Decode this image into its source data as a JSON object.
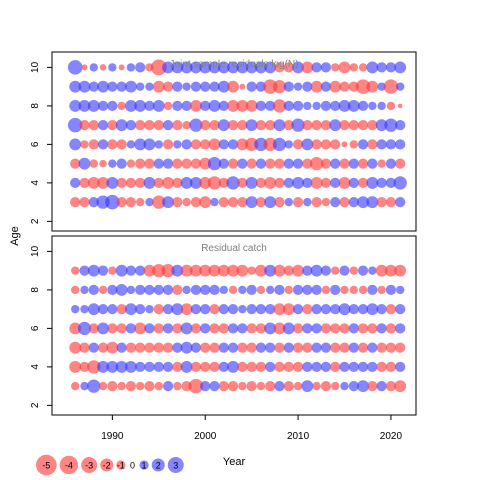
{
  "chart_data": {
    "type": "scatter",
    "y_axis_title": "Age",
    "x_axis_title": "Year",
    "x_ticks": [
      1990,
      2000,
      2010,
      2020
    ],
    "xlim": [
      1983.5,
      2022.7
    ],
    "colors": {
      "negative": "#ff3333",
      "positive": "#3333ff",
      "bubble_opacity": 0.6
    },
    "panels": [
      {
        "title": "Joint sample residuals log(N)",
        "ylim": [
          1.5,
          10.8
        ],
        "y_ticks": [
          2,
          4,
          6,
          8,
          10
        ],
        "years": [
          1986,
          1987,
          1988,
          1989,
          1990,
          1991,
          1992,
          1993,
          1994,
          1995,
          1996,
          1997,
          1998,
          1999,
          2000,
          2001,
          2002,
          2003,
          2004,
          2005,
          2006,
          2007,
          2008,
          2009,
          2010,
          2011,
          2012,
          2013,
          2014,
          2015,
          2016,
          2017,
          2018,
          2019,
          2020,
          2021
        ],
        "ages": [
          10,
          9,
          8,
          7,
          6,
          5,
          4,
          3
        ],
        "residuals": [
          [
            3,
            -0.5,
            1,
            -0.6,
            1,
            -0.5,
            1,
            1.5,
            -1,
            -3.5,
            2,
            2,
            2,
            2,
            2,
            2,
            2,
            2,
            2,
            2,
            2,
            2,
            -1.5,
            -1.5,
            2,
            -2,
            1.5,
            1.5,
            -1,
            -2,
            -1,
            -1,
            2,
            1.5,
            1.5,
            2
          ],
          [
            2,
            2,
            1.5,
            2,
            1.5,
            1.5,
            2,
            1,
            1,
            -2,
            -1.5,
            1.5,
            1,
            1.5,
            1.5,
            1.5,
            2,
            -2,
            -0.5,
            1.5,
            1.5,
            -3,
            -2.5,
            1.5,
            1,
            1.5,
            -2,
            1.5,
            -2,
            -1.5,
            -1.5,
            -3,
            -2,
            1,
            -3,
            1
          ],
          [
            2,
            2,
            2,
            1.5,
            1.5,
            -1,
            2,
            2,
            1.5,
            2,
            -1,
            1.5,
            1.5,
            -2,
            1.5,
            2,
            1.5,
            -2,
            -2,
            -2,
            1.5,
            1.5,
            -2.5,
            1.5,
            1.5,
            1,
            1,
            1.5,
            1.5,
            2,
            2,
            1.5,
            1,
            1,
            -1,
            -0.3
          ],
          [
            3,
            -1.5,
            -1.5,
            1.5,
            -1.5,
            2,
            1.5,
            -1.5,
            -1.5,
            -1.5,
            1.5,
            -1.5,
            -1,
            2.5,
            -1.5,
            -1.5,
            2,
            -1.5,
            -1.5,
            2,
            -1.5,
            -1.5,
            2,
            -1.5,
            2.5,
            -1.5,
            -1.5,
            -1.5,
            2,
            -1.5,
            -1.5,
            -1.5,
            -1.5,
            2,
            2.5,
            1.5
          ],
          [
            2,
            -1,
            -1.5,
            1.5,
            -1.5,
            -1.5,
            1,
            2,
            2,
            1,
            -1.5,
            1,
            1.5,
            -1.5,
            -1.5,
            -2,
            1.5,
            1.5,
            -2,
            -2.5,
            2.5,
            -2.5,
            2.5,
            1,
            -1.5,
            2,
            -1.5,
            -1.5,
            -1.5,
            -0.5,
            -1,
            1.5,
            -1.5,
            1.5,
            1.5,
            1.5
          ],
          [
            -1.5,
            2,
            -1,
            -0.8,
            1,
            1.5,
            -1,
            -1.5,
            -1.5,
            1.5,
            1.5,
            -1.5,
            -1.5,
            -1.5,
            -2,
            2.5,
            1.5,
            -1.5,
            1.5,
            -1.5,
            1.5,
            -1.5,
            -1.5,
            1.5,
            1.5,
            -1.5,
            -2.5,
            -1.5,
            1.5,
            -1.5,
            1.5,
            -1.5,
            1.5,
            -1,
            1.5,
            -1.5
          ],
          [
            1.5,
            -1.5,
            -2,
            -2,
            2,
            -1.5,
            -1.5,
            -1.5,
            2,
            -1.5,
            -2,
            -1.5,
            2,
            2,
            -2,
            -2.5,
            -1.5,
            2.5,
            -1.5,
            2,
            -1.5,
            -2,
            -1.5,
            1.5,
            2,
            1.5,
            -2,
            -1.5,
            1.5,
            -2,
            1.5,
            -1.5,
            2,
            1.5,
            1.5,
            2.5
          ],
          [
            -1.5,
            -1.5,
            1.5,
            2.5,
            3,
            -1.5,
            -1.5,
            -1,
            1,
            -2.5,
            2,
            -1.5,
            -1,
            -1.5,
            -2,
            1,
            -1.5,
            -1.5,
            -1.5,
            2,
            -1.5,
            2,
            -1.5,
            1,
            -1.5,
            1,
            -1.5,
            -1,
            1.5,
            -1.5,
            1.5,
            2,
            2,
            -1.5,
            -1.5,
            1.5
          ]
        ]
      },
      {
        "title": "Residual catch",
        "ylim": [
          1.5,
          10.8
        ],
        "y_ticks": [
          2,
          4,
          6,
          8,
          10
        ],
        "years": [
          1986,
          1987,
          1988,
          1989,
          1990,
          1991,
          1992,
          1993,
          1994,
          1995,
          1996,
          1997,
          1998,
          1999,
          2000,
          2001,
          2002,
          2003,
          2004,
          2005,
          2006,
          2007,
          2008,
          2009,
          2010,
          2011,
          2012,
          2013,
          2014,
          2015,
          2016,
          2017,
          2018,
          2019,
          2020,
          2021
        ],
        "ages": [
          9,
          8,
          7,
          6,
          5,
          4,
          3
        ],
        "residuals": [
          [
            -1,
            1.5,
            2,
            1.5,
            -1,
            2,
            1.5,
            1.5,
            -2,
            -2.5,
            -2.5,
            2,
            -2,
            -2,
            -2,
            -2,
            -2,
            -2,
            -2,
            -1,
            -2,
            2,
            -2,
            -1.5,
            -2,
            1.5,
            2,
            1.5,
            -1,
            1.5,
            -1,
            1.5,
            1,
            -2,
            -2,
            -2
          ],
          [
            -1,
            1,
            1.5,
            -1,
            1.5,
            2,
            1,
            1.5,
            1.5,
            1.5,
            1.5,
            -1.5,
            1,
            1.5,
            1.5,
            1.5,
            1,
            -1,
            1,
            1.5,
            -1,
            1,
            1.5,
            -1,
            1.5,
            1.5,
            1.5,
            -1,
            1.5,
            -1,
            -1,
            -1,
            1.5,
            -1,
            1.5,
            1
          ],
          [
            1,
            1,
            2,
            1.5,
            1.5,
            -1.5,
            2,
            1.5,
            1,
            -1.5,
            1.5,
            2,
            -2,
            1.5,
            1.5,
            -1.5,
            1.5,
            1.5,
            1,
            1.5,
            1.5,
            1.5,
            -2,
            -2,
            1.5,
            -1.5,
            1.5,
            1.5,
            1.5,
            2,
            1.5,
            1.5,
            2,
            1.5,
            -1.5,
            1.5
          ],
          [
            -2,
            2.5,
            -1.5,
            2,
            -1.5,
            -1.5,
            1.5,
            -2,
            1.5,
            -1.5,
            1.5,
            -1.5,
            2,
            -1.5,
            1.5,
            -1.5,
            -1.5,
            1.5,
            1.5,
            -1.5,
            -1.5,
            2,
            -2,
            2,
            -1.5,
            1.5,
            1.5,
            -1.5,
            -1.5,
            -1.5,
            1.5,
            -1.5,
            -1.5,
            1.5,
            -1.5,
            1.5
          ],
          [
            -2,
            -1.5,
            1.5,
            -1.5,
            -2,
            1.5,
            -1.5,
            -1.5,
            -1.5,
            -1.5,
            -1.5,
            1.5,
            2,
            1.5,
            -1.5,
            -1.5,
            1.5,
            1.5,
            -1.5,
            -1.5,
            1.5,
            1.5,
            -1.5,
            1.5,
            -1.5,
            -1.5,
            1.5,
            1.5,
            -1.5,
            -1.5,
            1.5,
            -1.5,
            1.5,
            -1.5,
            -1.5,
            -1.5
          ],
          [
            -2,
            -1.5,
            -2.5,
            2,
            2,
            2,
            2,
            1.5,
            1.5,
            1.5,
            1.5,
            -1.5,
            2,
            -1.5,
            -1.5,
            -1.5,
            1.5,
            2,
            -1.5,
            -1.5,
            -1.5,
            1.5,
            -1.5,
            -1.5,
            -1.5,
            1.5,
            1.5,
            1.5,
            -1.5,
            1.5,
            1.5,
            1.5,
            1.5,
            -1.5,
            -1.5,
            1.5
          ],
          [
            -1,
            1,
            2.5,
            -1,
            -1.5,
            -1,
            -1.5,
            -1,
            -1.5,
            -1,
            1.5,
            -1,
            -1.5,
            -3,
            1.5,
            1.5,
            -1.5,
            -1.5,
            -1,
            -1.5,
            -1,
            -1.5,
            1.5,
            -1.5,
            -1,
            2,
            -1,
            -1.5,
            -1,
            1,
            1.5,
            2,
            -1.5,
            1.5,
            -1.5,
            -2
          ]
        ]
      }
    ],
    "legend": {
      "values": [
        -5,
        -4,
        -3,
        -2,
        -1,
        0,
        1,
        2,
        3
      ],
      "labels": [
        "-5",
        "-4",
        "-3",
        "-2",
        "-1",
        "0",
        "1",
        "2",
        "3"
      ]
    }
  }
}
